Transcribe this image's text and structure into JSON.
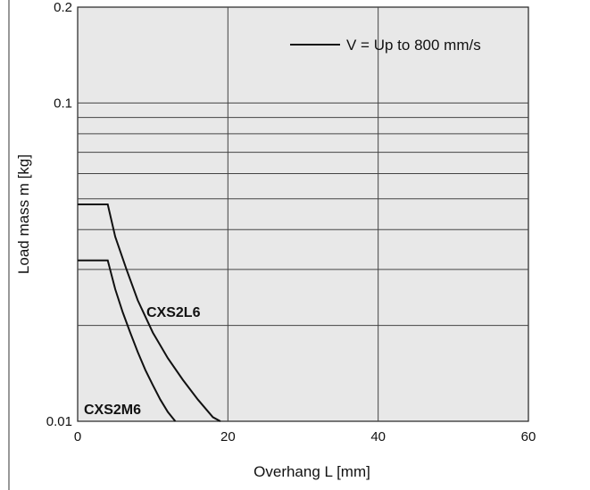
{
  "chart_data": {
    "type": "line",
    "title": "",
    "xlabel": "Overhang L [mm]",
    "ylabel": "Load mass m [kg]",
    "xlim": [
      0,
      60
    ],
    "ylim": [
      0.01,
      0.2
    ],
    "yscale": "log",
    "grid": true,
    "legend_position": "top-right",
    "x_ticks": [
      {
        "value": 0,
        "label": "0"
      },
      {
        "value": 20,
        "label": "20"
      },
      {
        "value": 40,
        "label": "40"
      },
      {
        "value": 60,
        "label": "60"
      }
    ],
    "y_ticks": [
      {
        "value": 0.01,
        "label": "0.01"
      },
      {
        "value": 0.1,
        "label": "0.1"
      },
      {
        "value": 0.2,
        "label": "0.2"
      }
    ],
    "legend": [
      {
        "label": "V = Up to 800 mm/s",
        "color": "#111111"
      }
    ],
    "series": [
      {
        "name": "CXS2L6",
        "color": "#111111",
        "points": [
          [
            0,
            0.048
          ],
          [
            4,
            0.048
          ],
          [
            5,
            0.038
          ],
          [
            6.5,
            0.03
          ],
          [
            8,
            0.024
          ],
          [
            10,
            0.019
          ],
          [
            12,
            0.0158
          ],
          [
            14,
            0.0135
          ],
          [
            16,
            0.0117
          ],
          [
            18,
            0.0103
          ],
          [
            19,
            0.01
          ]
        ]
      },
      {
        "name": "CXS2M6",
        "color": "#111111",
        "points": [
          [
            0,
            0.032
          ],
          [
            4,
            0.032
          ],
          [
            5,
            0.026
          ],
          [
            6,
            0.022
          ],
          [
            7,
            0.019
          ],
          [
            8,
            0.0165
          ],
          [
            9,
            0.0145
          ],
          [
            10,
            0.013
          ],
          [
            11,
            0.0117
          ],
          [
            12,
            0.0107
          ],
          [
            13,
            0.01
          ]
        ]
      }
    ]
  },
  "background_color": "#e8e8e8"
}
